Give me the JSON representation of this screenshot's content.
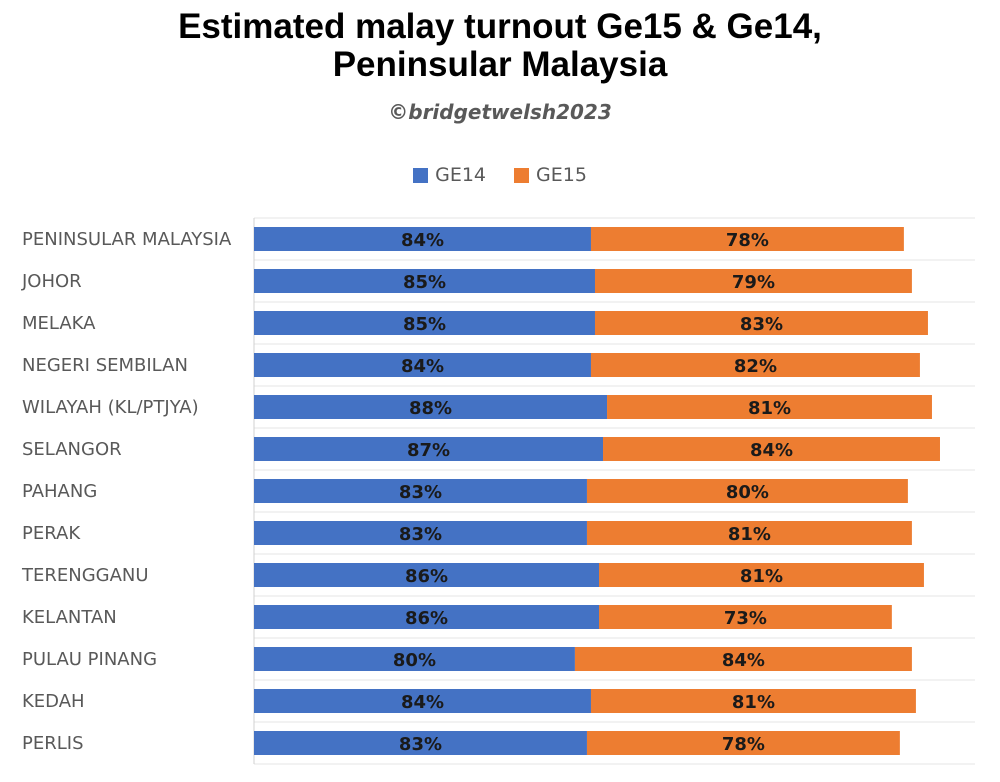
{
  "title_line1": "Estimated malay turnout Ge15 & Ge14,",
  "title_line2": "Peninsular Malaysia",
  "subtitle": "©bridgetwelsh2023",
  "chart_data": {
    "type": "bar",
    "orientation": "horizontal",
    "stacked": true,
    "title": "Estimated malay turnout Ge15 & Ge14, Peninsular Malaysia",
    "subtitle": "©bridgetwelsh2023",
    "legend_position": "top",
    "grid": true,
    "categories": [
      "PENINSULAR MALAYSIA",
      "JOHOR",
      "MELAKA",
      "NEGERI SEMBILAN",
      "WILAYAH (KL/PTJYA)",
      "SELANGOR",
      "PAHANG",
      "PERAK",
      "TERENGGANU",
      "KELANTAN",
      "PULAU PINANG",
      "KEDAH",
      "PERLIS"
    ],
    "series": [
      {
        "name": "GE14",
        "color": "#4472c4",
        "values": [
          84,
          85,
          85,
          84,
          88,
          87,
          83,
          83,
          86,
          86,
          80,
          84,
          83
        ],
        "labels": [
          "84%",
          "85%",
          "85%",
          "84%",
          "88%",
          "87%",
          "83%",
          "83%",
          "86%",
          "86%",
          "80%",
          "84%",
          "83%"
        ]
      },
      {
        "name": "GE15",
        "color": "#ed7d31",
        "values": [
          78,
          79,
          83,
          82,
          81,
          84,
          80,
          81,
          81,
          73,
          84,
          81,
          78
        ],
        "labels": [
          "78%",
          "79%",
          "83%",
          "82%",
          "81%",
          "84%",
          "80%",
          "81%",
          "81%",
          "73%",
          "84%",
          "81%",
          "78%"
        ]
      }
    ]
  }
}
